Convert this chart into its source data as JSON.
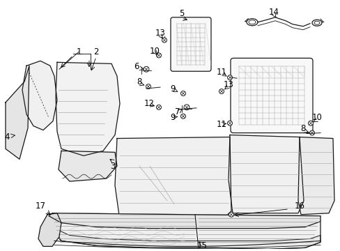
{
  "background_color": "#ffffff",
  "line_color": "#1a1a1a",
  "figsize": [
    4.89,
    3.6
  ],
  "dpi": 100,
  "image_base64": ""
}
